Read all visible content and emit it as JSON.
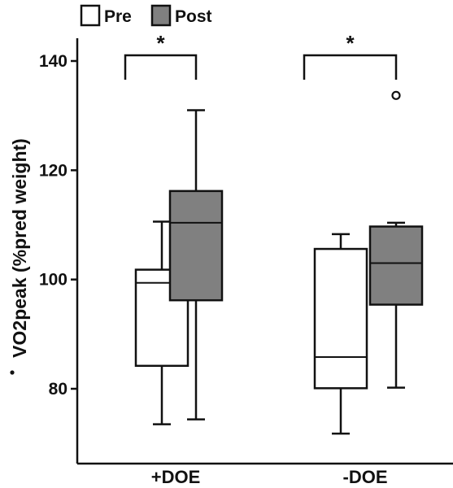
{
  "chart_data": {
    "type": "boxplot",
    "ylabel": "V̇O2peak (%pred weight)",
    "ylabel_text": "VO2peak (%pred weight)",
    "ylim": [
      66,
      146
    ],
    "yticks": [
      80,
      100,
      120,
      140
    ],
    "categories": [
      "+DOE",
      "-DOE"
    ],
    "legend": {
      "position": "top-left",
      "entries": [
        {
          "label": "Pre",
          "color": "#ffffff"
        },
        {
          "label": "Post",
          "color": "#808080"
        }
      ]
    },
    "series": [
      {
        "name": "Pre",
        "color": "#ffffff",
        "boxes": [
          {
            "category": "+DOE",
            "whisker_low": 73.5,
            "q1": 84.2,
            "median": 99.4,
            "q3": 101.8,
            "whisker_high": 110.6,
            "outliers": []
          },
          {
            "category": "-DOE",
            "whisker_low": 71.8,
            "q1": 80.1,
            "median": 85.8,
            "q3": 105.6,
            "whisker_high": 108.3,
            "outliers": []
          }
        ]
      },
      {
        "name": "Post",
        "color": "#808080",
        "boxes": [
          {
            "category": "+DOE",
            "whisker_low": 74.4,
            "q1": 96.2,
            "median": 110.4,
            "q3": 116.2,
            "whisker_high": 131.0,
            "outliers": []
          },
          {
            "category": "-DOE",
            "whisker_low": 80.2,
            "q1": 95.4,
            "median": 103.0,
            "q3": 109.7,
            "whisker_high": 110.4,
            "outliers": [
              133.7
            ]
          }
        ]
      }
    ],
    "significance": [
      {
        "category": "+DOE",
        "label": "*"
      },
      {
        "category": "-DOE",
        "label": "*"
      }
    ],
    "grid": false
  }
}
